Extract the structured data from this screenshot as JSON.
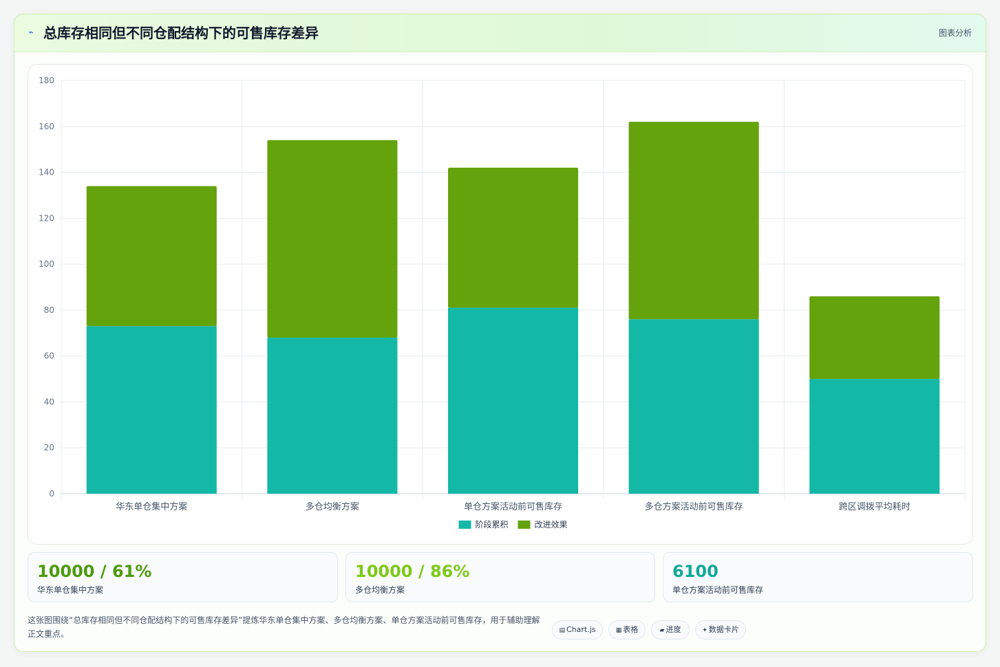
{
  "header": {
    "icon": "chart-line-icon",
    "title": "总库存相同但不同仓配结构下的可售库存差异",
    "right_label": "图表分析"
  },
  "colors": {
    "series_base": "#14b8a6",
    "series_top": "#65a30d",
    "stat1": "#4d9a0e",
    "stat2": "#7ec91a",
    "stat3": "#14a898"
  },
  "chart_data": {
    "type": "bar",
    "stacked": true,
    "categories": [
      "华东单仓集中方案",
      "多仓均衡方案",
      "单仓方案活动前可售库存",
      "多仓方案活动前可售库存",
      "跨区调拨平均耗时"
    ],
    "series": [
      {
        "name": "阶段累积",
        "values": [
          73,
          68,
          81,
          76,
          50
        ]
      },
      {
        "name": "改进效果",
        "values": [
          61,
          86,
          61,
          86,
          36
        ]
      }
    ],
    "ylim": [
      0,
      180
    ],
    "yticks": [
      0,
      20,
      40,
      60,
      80,
      100,
      120,
      140,
      160,
      180
    ],
    "legend_position": "bottom",
    "grid": true
  },
  "stats": [
    {
      "value": "10000 / 61%",
      "label": "华东单仓集中方案"
    },
    {
      "value": "10000 / 86%",
      "label": "多仓均衡方案"
    },
    {
      "value": "6100",
      "label": "单仓方案活动前可售库存"
    }
  ],
  "description": "这张图围绕“总库存相同但不同仓配结构下的可售库存差异”提炼华东单仓集中方案、多仓均衡方案、单仓方案活动前可售库存，用于辅助理解正文重点。",
  "tags": [
    {
      "icon": "chart-icon",
      "glyph": "▤",
      "label": "Chart.js"
    },
    {
      "icon": "table-icon",
      "glyph": "▦",
      "label": "表格"
    },
    {
      "icon": "progress-icon",
      "glyph": "▰",
      "label": "进度"
    },
    {
      "icon": "card-icon",
      "glyph": "✦",
      "label": "数据卡片"
    }
  ]
}
